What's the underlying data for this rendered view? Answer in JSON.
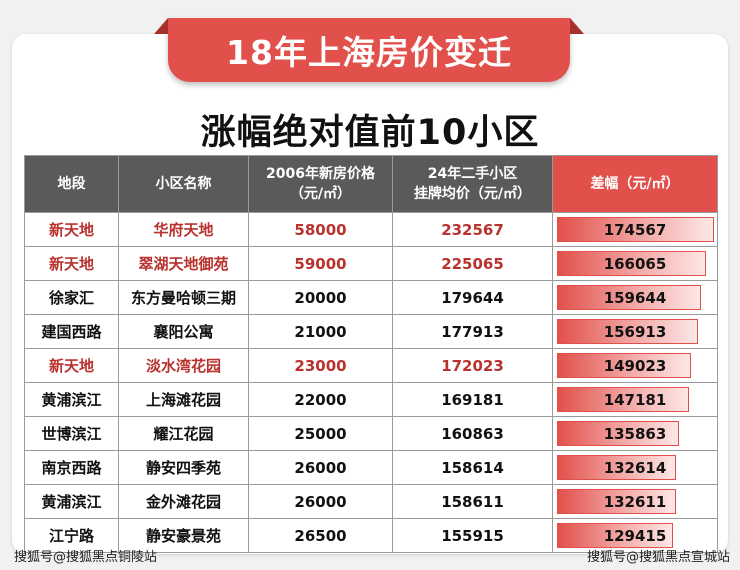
{
  "banner_title": "18年上海房价变迁",
  "subtitle": "涨幅绝对值前10小区",
  "table": {
    "headers": {
      "area": "地段",
      "name": "小区名称",
      "price2006_line1": "2006年新房价格",
      "price2006_line2": "（元/㎡）",
      "price2024_line1": "24年二手小区",
      "price2024_line2": "挂牌均价（元/㎡）",
      "diff": "差幅（元/㎡）"
    },
    "rows": [
      {
        "area": "新天地",
        "name": "华府天地",
        "price2006": "58000",
        "price2024": "232567",
        "diff": "174567",
        "highlight": true
      },
      {
        "area": "新天地",
        "name": "翠湖天地御苑",
        "price2006": "59000",
        "price2024": "225065",
        "diff": "166065",
        "highlight": true
      },
      {
        "area": "徐家汇",
        "name": "东方曼哈顿三期",
        "price2006": "20000",
        "price2024": "179644",
        "diff": "159644",
        "highlight": false
      },
      {
        "area": "建国西路",
        "name": "襄阳公寓",
        "price2006": "21000",
        "price2024": "177913",
        "diff": "156913",
        "highlight": false
      },
      {
        "area": "新天地",
        "name": "淡水湾花园",
        "price2006": "23000",
        "price2024": "172023",
        "diff": "149023",
        "highlight": true
      },
      {
        "area": "黄浦滨江",
        "name": "上海滩花园",
        "price2006": "22000",
        "price2024": "169181",
        "diff": "147181",
        "highlight": false
      },
      {
        "area": "世博滨江",
        "name": "耀江花园",
        "price2006": "25000",
        "price2024": "160863",
        "diff": "135863",
        "highlight": false
      },
      {
        "area": "南京西路",
        "name": "静安四季苑",
        "price2006": "26000",
        "price2024": "158614",
        "diff": "132614",
        "highlight": false
      },
      {
        "area": "黄浦滨江",
        "name": "金外滩花园",
        "price2006": "26000",
        "price2024": "158611",
        "diff": "132611",
        "highlight": false
      },
      {
        "area": "江宁路",
        "name": "静安豪景苑",
        "price2006": "26500",
        "price2024": "155915",
        "diff": "129415",
        "highlight": false
      }
    ]
  },
  "chart_data": {
    "type": "table",
    "title": "涨幅绝对值前10小区",
    "columns": [
      "地段",
      "小区名称",
      "2006年新房价格（元/㎡）",
      "24年二手小区挂牌均价（元/㎡）",
      "差幅（元/㎡）"
    ],
    "bar_column": "差幅（元/㎡）",
    "categories": [
      "华府天地",
      "翠湖天地御苑",
      "东方曼哈顿三期",
      "襄阳公寓",
      "淡水湾花园",
      "上海滩花园",
      "耀江花园",
      "静安四季苑",
      "金外滩花园",
      "静安豪景苑"
    ],
    "values": [
      174567,
      166065,
      159644,
      156913,
      149023,
      147181,
      135863,
      132614,
      132611,
      129415
    ]
  },
  "colors": {
    "accent": "#e2504b",
    "highlight_text": "#b8322e",
    "header_gray": "#5a5a5a"
  },
  "watermarks": {
    "left": "搜狐号@搜狐黑点铜陵站",
    "right": "搜狐号@搜狐黑点宣城站"
  }
}
